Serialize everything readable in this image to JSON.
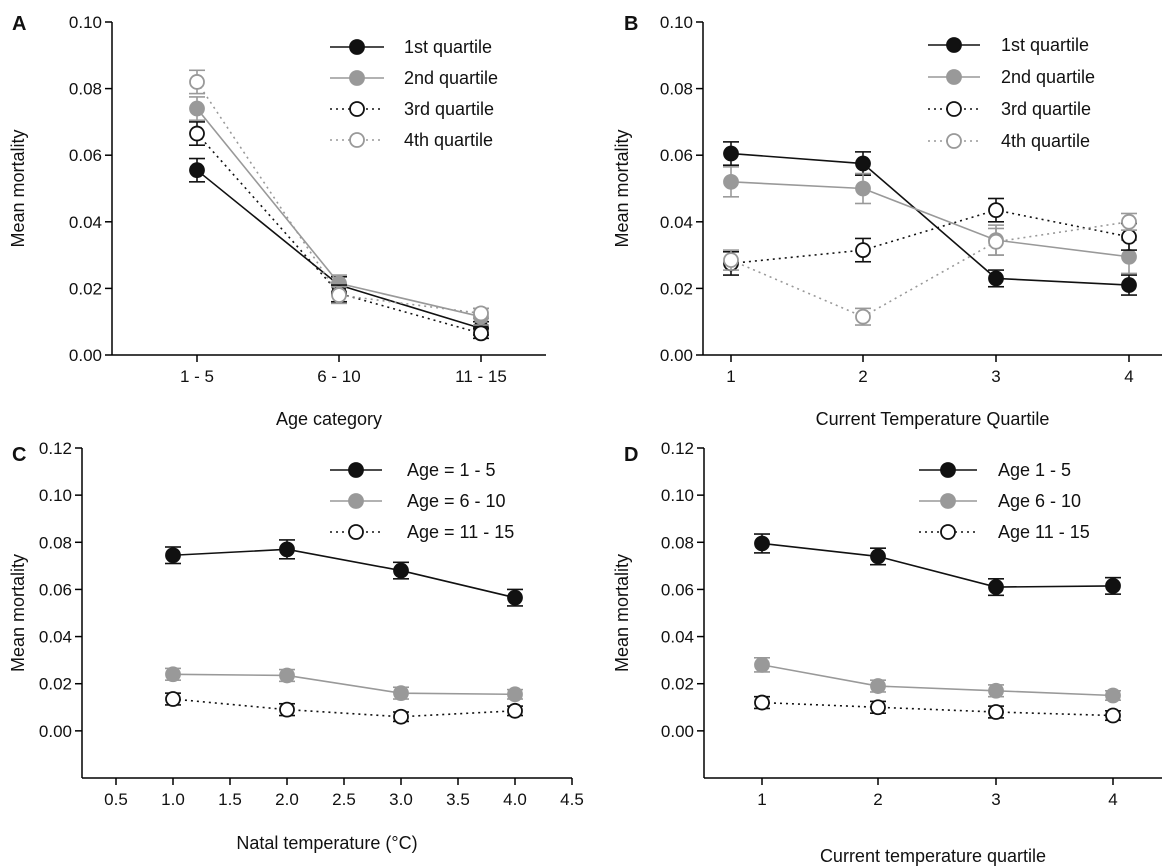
{
  "colors": {
    "black": "#111111",
    "gray": "#999999",
    "white": "#ffffff"
  },
  "chart_data": [
    {
      "panel": "A",
      "type": "line",
      "xlabel": "Age category",
      "ylabel": "Mean mortality",
      "categories": [
        "1 - 5",
        "6 - 10",
        "11 - 15"
      ],
      "ylim": [
        0,
        0.1
      ],
      "yticks": [
        "0.00",
        "0.02",
        "0.04",
        "0.06",
        "0.08",
        "0.10"
      ],
      "legend_position": "top-right",
      "series": [
        {
          "name": "1st quartile",
          "style": "black-filled",
          "values": [
            0.0555,
            0.021,
            0.008
          ],
          "error": [
            0.0035,
            0.0025,
            0.002
          ]
        },
        {
          "name": "2nd quartile",
          "style": "gray-filled",
          "values": [
            0.074,
            0.0215,
            0.0115
          ],
          "error": [
            0.0035,
            0.0025,
            0.0025
          ]
        },
        {
          "name": "3rd quartile",
          "style": "black-open",
          "values": [
            0.0665,
            0.0185,
            0.0065
          ],
          "error": [
            0.0035,
            0.0025,
            0.0015
          ]
        },
        {
          "name": "4th quartile",
          "style": "gray-open",
          "values": [
            0.082,
            0.018,
            0.0125
          ],
          "error": [
            0.0035,
            0.0025,
            0.0015
          ]
        }
      ]
    },
    {
      "panel": "B",
      "type": "line",
      "xlabel": "Current Temperature Quartile",
      "ylabel": "Mean mortality",
      "categories": [
        "1",
        "2",
        "3",
        "4"
      ],
      "ylim": [
        0,
        0.1
      ],
      "yticks": [
        "0.00",
        "0.02",
        "0.04",
        "0.06",
        "0.08",
        "0.10"
      ],
      "legend_position": "top-right",
      "series": [
        {
          "name": "1st quartile",
          "style": "black-filled",
          "values": [
            0.0605,
            0.0575,
            0.023,
            0.021
          ],
          "error": [
            0.0035,
            0.0035,
            0.0025,
            0.003
          ]
        },
        {
          "name": "2nd quartile",
          "style": "gray-filled",
          "values": [
            0.052,
            0.05,
            0.0345,
            0.0295
          ],
          "error": [
            0.0045,
            0.0045,
            0.0045,
            0.005
          ]
        },
        {
          "name": "3rd quartile",
          "style": "black-open",
          "values": [
            0.0275,
            0.0315,
            0.0435,
            0.0355
          ],
          "error": [
            0.0035,
            0.0035,
            0.0035,
            0.004
          ]
        },
        {
          "name": "4th quartile",
          "style": "gray-open",
          "values": [
            0.0285,
            0.0115,
            0.034,
            0.04
          ],
          "error": [
            0.003,
            0.0025,
            0.004,
            0.0025
          ]
        }
      ]
    },
    {
      "panel": "C",
      "type": "line",
      "xlabel": "Natal temperature (°C)",
      "ylabel": "Mean mortality",
      "x": [
        1.0,
        2.0,
        3.0,
        4.0
      ],
      "xlim": [
        0.5,
        4.5
      ],
      "xticks": [
        "0.5",
        "1.0",
        "1.5",
        "2.0",
        "2.5",
        "3.0",
        "3.5",
        "4.0",
        "4.5"
      ],
      "ylim": [
        -0.02,
        0.12
      ],
      "yticks": [
        "0.00",
        "0.02",
        "0.04",
        "0.06",
        "0.08",
        "0.10",
        "0.12"
      ],
      "legend_position": "top-right",
      "series": [
        {
          "name": "Age = 1 - 5",
          "style": "black-filled",
          "values": [
            0.0745,
            0.077,
            0.068,
            0.0565
          ],
          "error": [
            0.0035,
            0.004,
            0.0035,
            0.0035
          ]
        },
        {
          "name": "Age = 6 - 10",
          "style": "gray-filled",
          "values": [
            0.024,
            0.0235,
            0.016,
            0.0155
          ],
          "error": [
            0.0025,
            0.0025,
            0.0025,
            0.002
          ]
        },
        {
          "name": "Age = 11 - 15",
          "style": "black-open",
          "values": [
            0.0135,
            0.009,
            0.006,
            0.0085
          ],
          "error": [
            0.0025,
            0.0025,
            0.002,
            0.002
          ]
        }
      ]
    },
    {
      "panel": "D",
      "type": "line",
      "xlabel": "Current temperature quartile",
      "ylabel": "Mean mortality",
      "categories": [
        "1",
        "2",
        "3",
        "4"
      ],
      "ylim": [
        -0.02,
        0.12
      ],
      "yticks": [
        "0.00",
        "0.02",
        "0.04",
        "0.06",
        "0.08",
        "0.10",
        "0.12"
      ],
      "legend_position": "top-right",
      "series": [
        {
          "name": "Age 1 - 5",
          "style": "black-filled",
          "values": [
            0.0795,
            0.074,
            0.061,
            0.0615
          ],
          "error": [
            0.004,
            0.0035,
            0.0035,
            0.0035
          ]
        },
        {
          "name": "Age 6 - 10",
          "style": "gray-filled",
          "values": [
            0.028,
            0.019,
            0.017,
            0.015
          ],
          "error": [
            0.003,
            0.0025,
            0.0025,
            0.002
          ]
        },
        {
          "name": "Age 11 - 15",
          "style": "black-open",
          "values": [
            0.012,
            0.01,
            0.008,
            0.0065
          ],
          "error": [
            0.0025,
            0.0025,
            0.0025,
            0.002
          ]
        }
      ]
    }
  ]
}
